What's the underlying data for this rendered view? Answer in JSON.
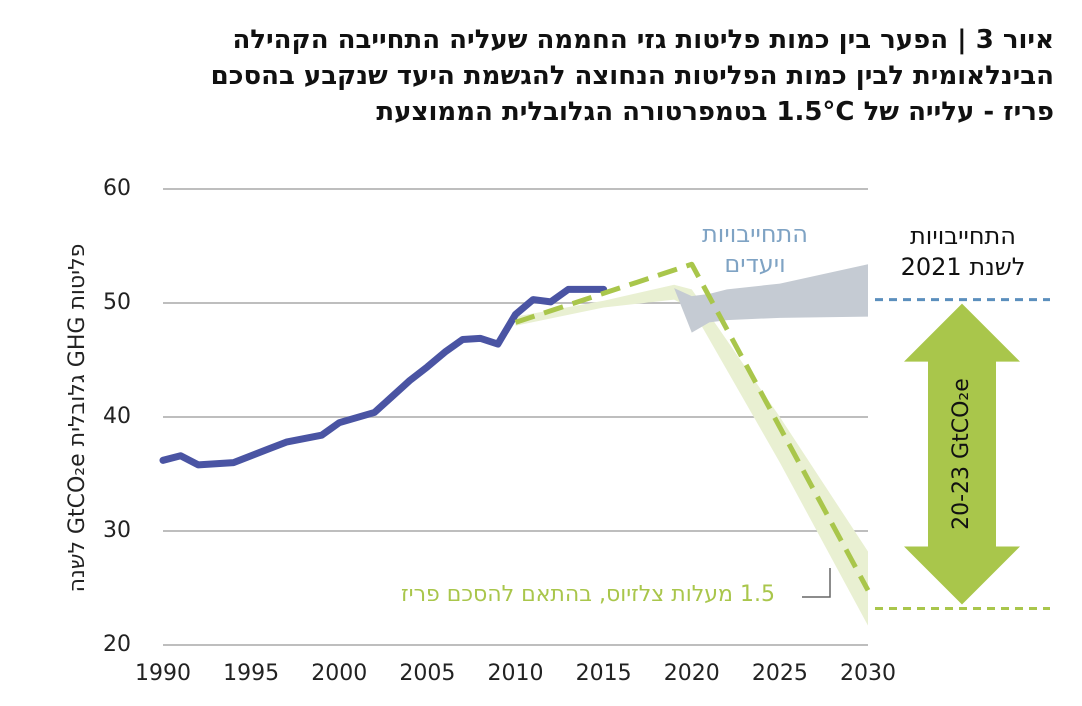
{
  "chart_data": {
    "type": "line",
    "title_lines": [
      "איור 3 | הפער בין כמות פליטות גזי החממה שעליה התחייבה הקהילה",
      "הבינלאומית לבין כמות הפליטות הנחוצה להגשמת היעד שנקבע בהסכם",
      "פריז - עלייה של 1.5°C בטמפרטורה הגלובלית הממוצעת"
    ],
    "y_label": "פליטות GHG גלובלית GtCO₂e לשנה",
    "xlim": [
      1990,
      2030
    ],
    "xticks": [
      1990,
      1995,
      2000,
      2005,
      2010,
      2015,
      2020,
      2025,
      2030
    ],
    "ylim": [
      20,
      60
    ],
    "yticks": [
      20,
      30,
      40,
      50,
      60
    ],
    "grid": true,
    "bands": [
      {
        "color": "#e9f0d2",
        "x": [
          2010,
          2015,
          2019,
          2020,
          2025,
          2030
        ],
        "upper": [
          48.8,
          50.2,
          51.6,
          51.2,
          40,
          28.2
        ],
        "lower": [
          48.0,
          49.6,
          50.3,
          49.5,
          36,
          21.7
        ]
      },
      {
        "name_lines": [
          "התחייבויות",
          "ויעדים"
        ],
        "label_color": "#7fa3c4",
        "color": "#c5cbd3",
        "x": [
          2018,
          2019,
          2020,
          2021,
          2022,
          2025,
          2030
        ],
        "upper": [
          51.3,
          51.3,
          50.6,
          50.8,
          51.2,
          51.7,
          53.4
        ],
        "lower": [
          51.3,
          51.3,
          47.4,
          48.3,
          48.5,
          48.7,
          48.8
        ]
      }
    ],
    "series": [
      {
        "color": "#4a54a3",
        "x": [
          1990,
          1991,
          1992,
          1994,
          1996,
          1997,
          1999,
          2000,
          2002,
          2003,
          2004,
          2005,
          2006,
          2007,
          2008,
          2009,
          2010,
          2011,
          2012,
          2013,
          2014,
          2015
        ],
        "values": [
          36.2,
          36.6,
          35.8,
          36.0,
          37.2,
          37.8,
          38.4,
          39.5,
          40.4,
          41.8,
          43.2,
          44.4,
          45.7,
          46.8,
          46.9,
          46.4,
          49.0,
          50.3,
          50.1,
          51.2,
          51.2,
          51.2
        ]
      },
      {
        "name": "1.5 מעלות צלזיוס, בהתאם להסכם פריז",
        "color": "#a9c64b",
        "dashed": true,
        "x": [
          2010,
          2020,
          2030
        ],
        "values": [
          48.3,
          53.4,
          24.8
        ]
      }
    ],
    "reference": {
      "lines": [
        {
          "value": 50.3,
          "color": "#5b8fbd"
        },
        {
          "value": 23.2,
          "color": "#a9c64b"
        }
      ],
      "label_lines": [
        "התחייבויות",
        "לשנת 2021"
      ],
      "arrow_color": "#a9c64b",
      "arrow_label": "20-23 GtCO₂e"
    }
  }
}
